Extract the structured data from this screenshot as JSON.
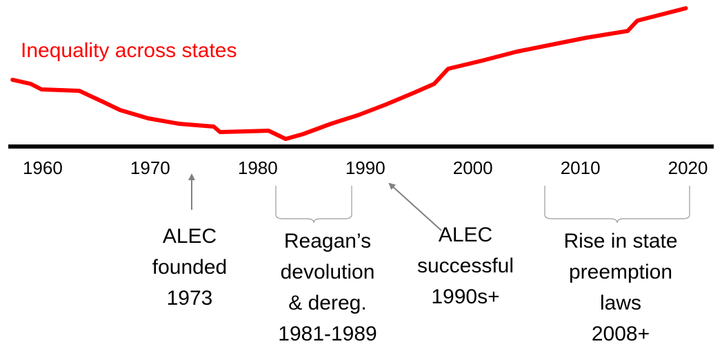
{
  "chart_data": {
    "type": "line",
    "x": [
      1957.2,
      1958.9,
      1959.9,
      1963.4,
      1965.6,
      1967.2,
      1969.8,
      1972.7,
      1975.9,
      1976.5,
      1981.0,
      1982.6,
      1984.2,
      1986.8,
      1989.4,
      1991.9,
      1994.5,
      1996.4,
      1997.7,
      2000.9,
      2004.1,
      2007.3,
      2010.5,
      2014.4,
      2015.3,
      2019.8
    ],
    "series": [
      {
        "name": "Inequality across states",
        "color": "#ff0000",
        "values": [
          48.5,
          45.5,
          41.5,
          40.5,
          32.5,
          26.5,
          20.5,
          16.5,
          14.5,
          10.5,
          11.5,
          5.5,
          9,
          16.5,
          23,
          30.5,
          39,
          45.5,
          56.5,
          62.5,
          69,
          74,
          79,
          84,
          91.5,
          100.5
        ]
      }
    ],
    "xlim": [
      1956.8,
      2022.4
    ],
    "xticks": [
      1960,
      1970,
      1980,
      1990,
      2000,
      2010,
      2020
    ],
    "ylim": [
      0,
      101
    ],
    "annotations": [
      {
        "lines": [
          "ALEC",
          "founded",
          "1973"
        ]
      },
      {
        "lines": [
          "Reagan’s",
          "devolution",
          "& dereg.",
          "1981-1989"
        ]
      },
      {
        "lines": [
          "ALEC",
          "successful",
          "1990s+"
        ]
      },
      {
        "lines": [
          "Rise in state",
          "preemption",
          "laws",
          "2008+"
        ]
      }
    ]
  }
}
